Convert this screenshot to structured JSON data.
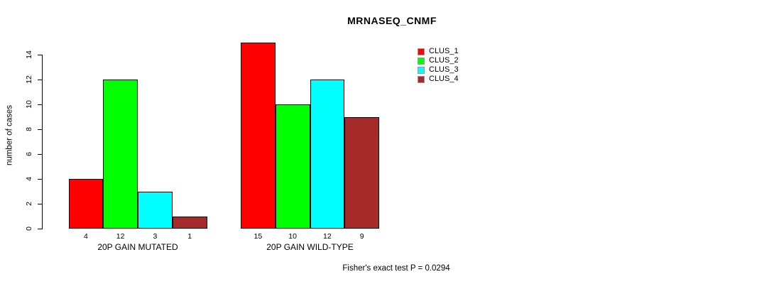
{
  "title": "MRNASEQ_CNMF",
  "annotation": "Fisher's exact test P = 0.0294",
  "chart_data": {
    "type": "bar",
    "title": "MRNASEQ_CNMF",
    "xlabel": "",
    "ylabel": "number of cases",
    "ylim": [
      0,
      14
    ],
    "yticks": [
      0,
      2,
      4,
      6,
      8,
      10,
      12,
      14
    ],
    "grid": false,
    "legend_position": "top-right",
    "categories": [
      "20P GAIN MUTATED",
      "20P GAIN WILD-TYPE"
    ],
    "series": [
      {
        "name": "CLUS_1",
        "color": "#ff0000",
        "values": [
          4,
          15
        ]
      },
      {
        "name": "CLUS_2",
        "color": "#00ff00",
        "values": [
          12,
          10
        ]
      },
      {
        "name": "CLUS_3",
        "color": "#00ffff",
        "values": [
          3,
          12
        ]
      },
      {
        "name": "CLUS_4",
        "color": "#a52a2a",
        "values": [
          1,
          9
        ]
      }
    ],
    "bar_value_labels_shown": true,
    "annotation": "Fisher's exact test P = 0.0294"
  }
}
